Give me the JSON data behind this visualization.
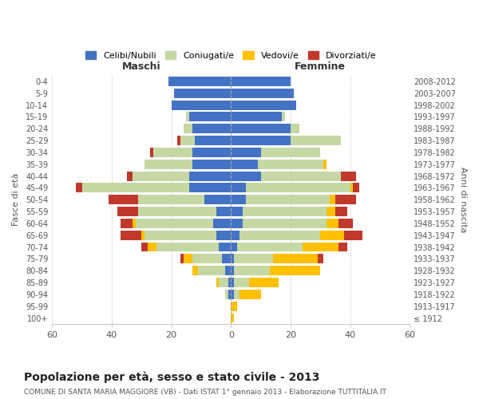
{
  "age_groups": [
    "100+",
    "95-99",
    "90-94",
    "85-89",
    "80-84",
    "75-79",
    "70-74",
    "65-69",
    "60-64",
    "55-59",
    "50-54",
    "45-49",
    "40-44",
    "35-39",
    "30-34",
    "25-29",
    "20-24",
    "15-19",
    "10-14",
    "5-9",
    "0-4"
  ],
  "birth_years": [
    "≤ 1912",
    "1913-1917",
    "1918-1922",
    "1923-1927",
    "1928-1932",
    "1933-1937",
    "1938-1942",
    "1943-1947",
    "1948-1952",
    "1953-1957",
    "1958-1962",
    "1963-1967",
    "1968-1972",
    "1973-1977",
    "1978-1982",
    "1983-1987",
    "1988-1992",
    "1993-1997",
    "1998-2002",
    "2003-2007",
    "2008-2012"
  ],
  "colors": {
    "celibi": "#4472c4",
    "coniugati": "#c5d8a4",
    "vedovi": "#ffc000",
    "divorziati": "#c0392b"
  },
  "males": {
    "celibi": [
      0,
      0,
      1,
      1,
      2,
      3,
      4,
      5,
      6,
      5,
      9,
      14,
      14,
      13,
      13,
      12,
      13,
      14,
      20,
      19,
      21
    ],
    "coniugati": [
      0,
      0,
      1,
      3,
      9,
      10,
      21,
      24,
      26,
      26,
      22,
      36,
      19,
      16,
      13,
      5,
      3,
      1,
      0,
      0,
      0
    ],
    "vedovi": [
      0,
      0,
      0,
      1,
      2,
      3,
      3,
      1,
      1,
      0,
      0,
      0,
      0,
      0,
      0,
      0,
      0,
      0,
      0,
      0,
      0
    ],
    "divorziati": [
      0,
      0,
      0,
      0,
      0,
      1,
      2,
      7,
      4,
      7,
      10,
      2,
      2,
      0,
      1,
      1,
      0,
      0,
      0,
      0,
      0
    ]
  },
  "females": {
    "celibi": [
      0,
      0,
      1,
      1,
      1,
      1,
      2,
      3,
      4,
      4,
      5,
      5,
      10,
      9,
      10,
      20,
      20,
      17,
      22,
      21,
      20
    ],
    "coniugati": [
      0,
      0,
      2,
      5,
      12,
      13,
      22,
      27,
      28,
      28,
      28,
      35,
      27,
      22,
      20,
      17,
      3,
      1,
      0,
      0,
      0
    ],
    "vedovi": [
      1,
      2,
      7,
      10,
      17,
      15,
      12,
      8,
      4,
      3,
      2,
      1,
      0,
      1,
      0,
      0,
      0,
      0,
      0,
      0,
      0
    ],
    "divorziati": [
      0,
      0,
      0,
      0,
      0,
      2,
      3,
      6,
      5,
      4,
      7,
      2,
      5,
      0,
      0,
      0,
      0,
      0,
      0,
      0,
      0
    ]
  },
  "title": "Popolazione per età, sesso e stato civile - 2013",
  "subtitle": "COMUNE DI SANTA MARIA MAGGIORE (VB) - Dati ISTAT 1° gennaio 2013 - Elaborazione TUTTITALIA.IT",
  "xlabel_left": "Maschi",
  "xlabel_right": "Femmine",
  "ylabel_left": "Fasce di età",
  "ylabel_right": "Anni di nascita",
  "xlim": 60,
  "legend_labels": [
    "Celibi/Nubili",
    "Coniugati/e",
    "Vedovi/e",
    "Divorziati/e"
  ],
  "background_color": "#ffffff",
  "grid_color": "#cccccc"
}
